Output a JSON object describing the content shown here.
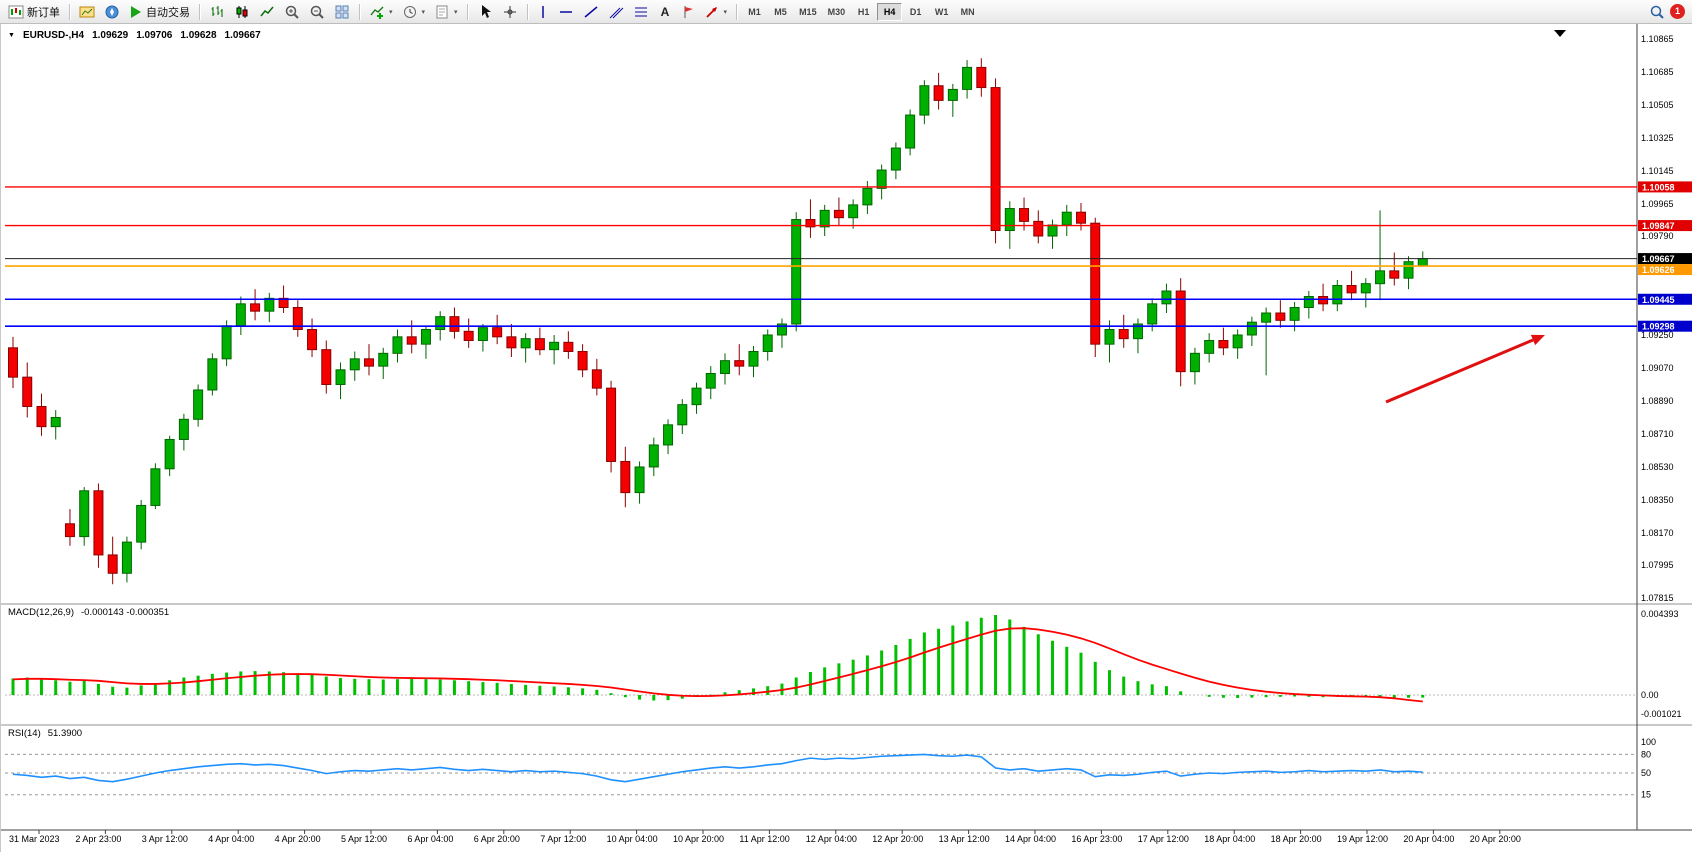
{
  "toolbar": {
    "notification_count": "1",
    "groups": [
      {
        "items": [
          {
            "name": "new-order-button",
            "icon": "chart-icon",
            "label": "新订单"
          }
        ]
      },
      {
        "items": [
          {
            "name": "market-watch-button",
            "icon": "market-watch-icon"
          },
          {
            "name": "navigator-button",
            "icon": "navigator-icon"
          },
          {
            "name": "autotrading-button",
            "icon": "play-icon",
            "label": "自动交易"
          }
        ]
      },
      {
        "items": [
          {
            "name": "bar-chart-button",
            "icon": "bars-icon"
          },
          {
            "name": "candlestick-chart-button",
            "icon": "candles-icon"
          },
          {
            "name": "line-chart-button",
            "icon": "line-icon"
          },
          {
            "name": "zoom-in-button",
            "icon": "zoom-in-icon"
          },
          {
            "name": "zoom-out-button",
            "icon": "zoom-out-icon"
          },
          {
            "name": "tile-windows-button",
            "icon": "tile-icon"
          }
        ]
      },
      {
        "items": [
          {
            "name": "indicators-button",
            "icon": "indicators-icon",
            "dropdown": true
          },
          {
            "name": "periods-button",
            "icon": "clock-icon",
            "dropdown": true
          },
          {
            "name": "templates-button",
            "icon": "template-icon",
            "dropdown": true
          }
        ]
      },
      {
        "items": [
          {
            "name": "cursor-button",
            "icon": "cursor-icon"
          },
          {
            "name": "crosshair-button",
            "icon": "crosshair-icon"
          }
        ]
      },
      {
        "items": [
          {
            "name": "vertical-line-button",
            "icon": "vline-icon"
          },
          {
            "name": "horizontal-line-button",
            "icon": "hline-icon"
          },
          {
            "name": "trendline-button",
            "icon": "trendline-icon"
          },
          {
            "name": "channel-button",
            "icon": "channel-icon"
          },
          {
            "name": "fibonacci-button",
            "icon": "fibo-icon"
          },
          {
            "name": "text-button",
            "icon": "text-icon"
          },
          {
            "name": "text-label-button",
            "icon": "label-icon"
          },
          {
            "name": "arrows-button",
            "icon": "arrow-icon",
            "dropdown": true
          }
        ]
      }
    ],
    "timeframes": [
      {
        "label": "M1",
        "active": false
      },
      {
        "label": "M5",
        "active": false
      },
      {
        "label": "M15",
        "active": false
      },
      {
        "label": "M30",
        "active": false
      },
      {
        "label": "H1",
        "active": false
      },
      {
        "label": "H4",
        "active": true
      },
      {
        "label": "D1",
        "active": false
      },
      {
        "label": "W1",
        "active": false
      },
      {
        "label": "MN",
        "active": false
      }
    ]
  },
  "chart_data": {
    "type": "candlestick",
    "symbol": "EURUSD",
    "timeframe": "H4",
    "header": {
      "marker": "▼",
      "symbol_period": "EURUSD-,H4",
      "open": "1.09629",
      "high": "1.09706",
      "low": "1.09628",
      "close": "1.09667"
    },
    "ylim": [
      1.07815,
      1.10865
    ],
    "style": {
      "up_color": "#00B000",
      "up_border": "#006600",
      "down_color": "#F40000",
      "down_border": "#8B0000"
    },
    "price_axis_labels": [
      "1.10865",
      "1.10685",
      "1.10505",
      "1.10325",
      "1.10145",
      "1.09965",
      "1.09790",
      "1.09250",
      "1.09070",
      "1.08890",
      "1.08710",
      "1.08530",
      "1.08350",
      "1.08170",
      "1.07995",
      "1.07815"
    ],
    "price_lines": [
      {
        "name": "resistance-line-1",
        "price": 1.10058,
        "label": "1.10058",
        "color": "#E00000",
        "line_color": "#FF0000",
        "width": 1.4
      },
      {
        "name": "resistance-line-2",
        "price": 1.09847,
        "label": "1.09847",
        "color": "#E00000",
        "line_color": "#FF0000",
        "width": 1.4
      },
      {
        "name": "current-price-line",
        "price": 1.09667,
        "label": "1.09667",
        "color": "#000000",
        "line_color": "#222222",
        "width": 1
      },
      {
        "name": "alert-line",
        "price": 1.09626,
        "label": "1.09626",
        "color": "#FF9900",
        "line_color": "#FFA500",
        "width": 1.6
      },
      {
        "name": "support-line-1",
        "price": 1.09445,
        "label": "1.09445",
        "color": "#0000CC",
        "line_color": "#0000FF",
        "width": 1.6
      },
      {
        "name": "support-line-2",
        "price": 1.09298,
        "label": "1.09298",
        "color": "#0000CC",
        "line_color": "#0000FF",
        "width": 1.6
      }
    ],
    "time_labels": [
      "31 Mar 2023",
      "2 Apr 23:00",
      "3 Apr 12:00",
      "4 Apr 04:00",
      "4 Apr 20:00",
      "5 Apr 12:00",
      "6 Apr 04:00",
      "6 Apr 20:00",
      "7 Apr 12:00",
      "10 Apr 04:00",
      "10 Apr 20:00",
      "11 Apr 12:00",
      "12 Apr 04:00",
      "12 Apr 20:00",
      "13 Apr 12:00",
      "14 Apr 04:00",
      "16 Apr 23:00",
      "17 Apr 12:00",
      "18 Apr 04:00",
      "18 Apr 20:00",
      "19 Apr 12:00",
      "20 Apr 04:00",
      "20 Apr 20:00"
    ],
    "candles": [
      [
        1.0918,
        1.0924,
        1.0896,
        1.0902
      ],
      [
        1.0902,
        1.091,
        1.088,
        1.0886
      ],
      [
        1.0886,
        1.0893,
        1.087,
        1.0875
      ],
      [
        1.0875,
        1.0884,
        1.0868,
        1.088
      ],
      [
        1.0822,
        1.083,
        1.081,
        1.0815
      ],
      [
        1.0815,
        1.0842,
        1.081,
        1.084
      ],
      [
        1.084,
        1.0844,
        1.0798,
        1.0805
      ],
      [
        1.0805,
        1.0815,
        1.0789,
        1.0795
      ],
      [
        1.0795,
        1.0815,
        1.079,
        1.0812
      ],
      [
        1.0812,
        1.0835,
        1.0808,
        1.0832
      ],
      [
        1.0832,
        1.0855,
        1.083,
        1.0852
      ],
      [
        1.0852,
        1.087,
        1.0848,
        1.0868
      ],
      [
        1.0868,
        1.0882,
        1.0862,
        1.0879
      ],
      [
        1.0879,
        1.0898,
        1.0875,
        1.0895
      ],
      [
        1.0895,
        1.0915,
        1.0892,
        1.0912
      ],
      [
        1.0912,
        1.0933,
        1.0908,
        1.093
      ],
      [
        1.093,
        1.0946,
        1.0925,
        1.0942
      ],
      [
        1.0942,
        1.095,
        1.0933,
        1.0938
      ],
      [
        1.0938,
        1.0948,
        1.0932,
        1.0945
      ],
      [
        1.0945,
        1.0952,
        1.0937,
        1.094
      ],
      [
        1.094,
        1.0944,
        1.0924,
        1.0928
      ],
      [
        1.0928,
        1.0934,
        1.0913,
        1.0917
      ],
      [
        1.0917,
        1.0922,
        1.0893,
        1.0898
      ],
      [
        1.0898,
        1.091,
        1.089,
        1.0906
      ],
      [
        1.0906,
        1.0916,
        1.09,
        1.0912
      ],
      [
        1.0912,
        1.092,
        1.0903,
        1.0908
      ],
      [
        1.0908,
        1.0918,
        1.0901,
        1.0915
      ],
      [
        1.0915,
        1.0928,
        1.091,
        1.0924
      ],
      [
        1.0924,
        1.0933,
        1.0915,
        1.092
      ],
      [
        1.092,
        1.093,
        1.0912,
        1.0928
      ],
      [
        1.0928,
        1.0938,
        1.0922,
        1.0935
      ],
      [
        1.0935,
        1.094,
        1.0923,
        1.0927
      ],
      [
        1.0927,
        1.0934,
        1.0918,
        1.0922
      ],
      [
        1.0922,
        1.0931,
        1.0916,
        1.0929
      ],
      [
        1.0929,
        1.0936,
        1.092,
        1.0924
      ],
      [
        1.0924,
        1.0931,
        1.0913,
        1.0918
      ],
      [
        1.0918,
        1.0926,
        1.091,
        1.0923
      ],
      [
        1.0923,
        1.0929,
        1.0914,
        1.0917
      ],
      [
        1.0917,
        1.0925,
        1.0909,
        1.0921
      ],
      [
        1.0921,
        1.0927,
        1.0912,
        1.0916
      ],
      [
        1.0916,
        1.092,
        1.0902,
        1.0906
      ],
      [
        1.0906,
        1.0912,
        1.0892,
        1.0896
      ],
      [
        1.0896,
        1.09,
        1.085,
        1.0856
      ],
      [
        1.0856,
        1.0864,
        1.0831,
        1.0839
      ],
      [
        1.0839,
        1.0856,
        1.0833,
        1.0853
      ],
      [
        1.0853,
        1.0869,
        1.0848,
        1.0865
      ],
      [
        1.0865,
        1.0879,
        1.086,
        1.0876
      ],
      [
        1.0876,
        1.089,
        1.0871,
        1.0887
      ],
      [
        1.0887,
        1.0899,
        1.0882,
        1.0896
      ],
      [
        1.0896,
        1.0908,
        1.089,
        1.0904
      ],
      [
        1.0904,
        1.0915,
        1.0898,
        1.0911
      ],
      [
        1.0911,
        1.092,
        1.0903,
        1.0908
      ],
      [
        1.0908,
        1.0919,
        1.0902,
        1.0916
      ],
      [
        1.0916,
        1.0928,
        1.0911,
        1.0925
      ],
      [
        1.0925,
        1.0934,
        1.0918,
        1.0931
      ],
      [
        1.0931,
        1.0992,
        1.0927,
        1.0988
      ],
      [
        1.0988,
        1.0999,
        1.0978,
        1.0984
      ],
      [
        1.0984,
        1.0996,
        1.0979,
        1.0993
      ],
      [
        1.0993,
        1.1,
        1.0985,
        1.0989
      ],
      [
        1.0989,
        1.0999,
        1.0983,
        1.0996
      ],
      [
        1.0996,
        1.1009,
        1.0991,
        1.1005
      ],
      [
        1.1005,
        1.1018,
        1.0999,
        1.1015
      ],
      [
        1.1015,
        1.103,
        1.101,
        1.1027
      ],
      [
        1.1027,
        1.1048,
        1.1023,
        1.1045
      ],
      [
        1.1045,
        1.1064,
        1.104,
        1.1061
      ],
      [
        1.1061,
        1.1068,
        1.1048,
        1.1053
      ],
      [
        1.1053,
        1.1062,
        1.1044,
        1.1059
      ],
      [
        1.1059,
        1.1075,
        1.1054,
        1.1071
      ],
      [
        1.1071,
        1.1076,
        1.1055,
        1.106
      ],
      [
        1.106,
        1.1065,
        1.0975,
        1.0982
      ],
      [
        1.0982,
        1.0998,
        1.0972,
        1.0994
      ],
      [
        1.0994,
        1.1,
        1.0982,
        1.0987
      ],
      [
        1.0987,
        1.0993,
        1.0975,
        1.0979
      ],
      [
        1.0979,
        1.0988,
        1.0972,
        1.0985
      ],
      [
        1.0985,
        1.0996,
        1.0979,
        1.0992
      ],
      [
        1.0992,
        1.0997,
        1.0982,
        1.0986
      ],
      [
        1.0986,
        1.0989,
        1.0913,
        1.092
      ],
      [
        1.092,
        1.0933,
        1.091,
        1.0928
      ],
      [
        1.0928,
        1.0936,
        1.0918,
        1.0923
      ],
      [
        1.0923,
        1.0934,
        1.0915,
        1.0931
      ],
      [
        1.0931,
        1.0945,
        1.0927,
        1.0942
      ],
      [
        1.0942,
        1.0953,
        1.0937,
        1.0949
      ],
      [
        1.0949,
        1.0956,
        1.0897,
        1.0905
      ],
      [
        1.0905,
        1.0918,
        1.0898,
        1.0915
      ],
      [
        1.0915,
        1.0926,
        1.091,
        1.0922
      ],
      [
        1.0922,
        1.0929,
        1.0914,
        1.0918
      ],
      [
        1.0918,
        1.0928,
        1.0912,
        1.0925
      ],
      [
        1.0925,
        1.0935,
        1.0919,
        1.0932
      ],
      [
        1.0932,
        1.094,
        1.0903,
        1.0937
      ],
      [
        1.0937,
        1.0944,
        1.0929,
        1.0933
      ],
      [
        1.0933,
        1.0943,
        1.0927,
        1.094
      ],
      [
        1.094,
        1.0949,
        1.0934,
        1.0946
      ],
      [
        1.0946,
        1.0953,
        1.0938,
        1.0942
      ],
      [
        1.0942,
        1.0955,
        1.0938,
        1.0952
      ],
      [
        1.0952,
        1.096,
        1.0944,
        1.0948
      ],
      [
        1.0948,
        1.0956,
        1.094,
        1.0953
      ],
      [
        1.0953,
        1.0993,
        1.0944,
        1.096
      ],
      [
        1.096,
        1.097,
        1.0952,
        1.0956
      ],
      [
        1.0956,
        1.0968,
        1.095,
        1.0965
      ],
      [
        1.09629,
        1.09706,
        1.09628,
        1.09667
      ]
    ],
    "macd": {
      "label": "MACD(12,26,9)",
      "values_text": "-0.000143 -0.000351",
      "histogram_color": "#00C000",
      "signal_color": "#FF0000",
      "axis_labels": [
        "0.004393",
        "0.00",
        "-0.001021"
      ],
      "histogram": [
        0.0009,
        0.00095,
        0.00088,
        0.0008,
        0.00072,
        0.00078,
        0.0006,
        0.00045,
        0.0004,
        0.00052,
        0.00065,
        0.0008,
        0.00095,
        0.00105,
        0.00115,
        0.00122,
        0.00128,
        0.0013,
        0.00128,
        0.00124,
        0.00118,
        0.0011,
        0.001,
        0.00092,
        0.00088,
        0.00086,
        0.00084,
        0.00086,
        0.00088,
        0.00086,
        0.00084,
        0.0008,
        0.00075,
        0.0007,
        0.00066,
        0.0006,
        0.00055,
        0.0005,
        0.00046,
        0.00042,
        0.00036,
        0.00028,
        0.0001,
        -0.00012,
        -0.00025,
        -0.0003,
        -0.00028,
        -0.0002,
        -0.0001,
        2e-05,
        0.00015,
        0.00026,
        0.00036,
        0.00048,
        0.00062,
        0.00095,
        0.00125,
        0.0015,
        0.00172,
        0.00192,
        0.00215,
        0.00242,
        0.00272,
        0.00305,
        0.0034,
        0.0036,
        0.00378,
        0.004,
        0.0042,
        0.00435,
        0.0041,
        0.0037,
        0.0033,
        0.00295,
        0.00262,
        0.0023,
        0.0018,
        0.00135,
        0.001,
        0.00075,
        0.00058,
        0.00048,
        0.0002,
        0.0,
        -0.0001,
        -0.00015,
        -0.00016,
        -0.00014,
        -0.00012,
        -0.0001,
        -8e-05,
        -0.0001,
        -0.00012,
        -0.0001,
        -8e-05,
        -0.0001,
        -0.00012,
        -0.00014,
        -0.00015,
        -0.000143
      ],
      "signal": [
        0.00085,
        0.00088,
        0.00088,
        0.00086,
        0.00083,
        0.00081,
        0.00077,
        0.0007,
        0.00063,
        0.0006,
        0.0006,
        0.00063,
        0.00068,
        0.00075,
        0.00083,
        0.00091,
        0.00098,
        0.00105,
        0.0011,
        0.00113,
        0.00114,
        0.00113,
        0.0011,
        0.00106,
        0.00102,
        0.00098,
        0.00095,
        0.00093,
        0.00092,
        0.00091,
        0.0009,
        0.00088,
        0.00086,
        0.00083,
        0.0008,
        0.00076,
        0.00072,
        0.00068,
        0.00064,
        0.0006,
        0.00055,
        0.00049,
        0.00041,
        0.0003,
        0.00019,
        9e-05,
        1e-05,
        -4e-05,
        -6e-05,
        -5e-05,
        -2e-05,
        3e-05,
        0.0001,
        0.00018,
        0.00027,
        0.0004,
        0.00057,
        0.00076,
        0.00095,
        0.00115,
        0.00135,
        0.00156,
        0.00179,
        0.00204,
        0.00231,
        0.00257,
        0.00281,
        0.00305,
        0.00328,
        0.00349,
        0.00361,
        0.00363,
        0.00356,
        0.00344,
        0.00328,
        0.00308,
        0.00283,
        0.00253,
        0.00222,
        0.00192,
        0.00165,
        0.00141,
        0.00117,
        0.00094,
        0.00073,
        0.00055,
        0.0004,
        0.00028,
        0.00018,
        0.00011,
        5e-05,
        1e-05,
        -2e-05,
        -5e-05,
        -7e-05,
        -9e-05,
        -0.00012,
        -0.00018,
        -0.00027,
        -0.000351
      ]
    },
    "rsi": {
      "label": "RSI(14)",
      "value_text": "51.3900",
      "line_color": "#1E90FF",
      "levels": [
        80,
        50,
        15
      ],
      "axis_labels": [
        "100",
        "80",
        "50",
        "15"
      ],
      "values": [
        48,
        46,
        43,
        45,
        41,
        43,
        38,
        36,
        40,
        45,
        50,
        54,
        57,
        60,
        62,
        64,
        65,
        63,
        64,
        62,
        58,
        54,
        49,
        52,
        54,
        53,
        55,
        57,
        55,
        57,
        59,
        56,
        54,
        56,
        54,
        52,
        54,
        52,
        53,
        51,
        49,
        45,
        39,
        36,
        40,
        44,
        48,
        52,
        55,
        58,
        60,
        58,
        60,
        63,
        65,
        70,
        74,
        72,
        74,
        73,
        75,
        77,
        78,
        79,
        80,
        78,
        77,
        79,
        76,
        58,
        55,
        57,
        53,
        55,
        57,
        55,
        44,
        47,
        46,
        48,
        51,
        53,
        45,
        48,
        50,
        49,
        51,
        52,
        53,
        51,
        52,
        54,
        52,
        53,
        54,
        53,
        55,
        52,
        53,
        51.39
      ]
    },
    "annotation_arrow": {
      "from": [
        1385,
        378
      ],
      "to": [
        1532,
        316
      ],
      "color": "#E01010"
    }
  }
}
